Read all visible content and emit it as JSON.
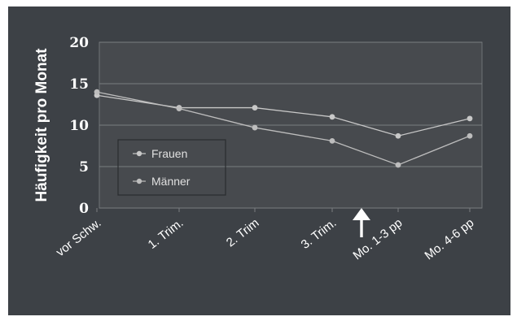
{
  "chart_data": {
    "type": "line",
    "title": "",
    "xlabel": "",
    "ylabel": "Häufigkeit pro Monat",
    "categories": [
      "vor Schw.",
      "1. Trim.",
      "2. Trim",
      "3. Trim.",
      "Mo. 1-3 pp",
      "Mo. 4-6 pp"
    ],
    "ylim": [
      0,
      20
    ],
    "yticks": [
      0,
      5,
      10,
      15,
      20
    ],
    "series": [
      {
        "name": "Frauen",
        "values": [
          13.6,
          12.1,
          12.1,
          11.0,
          8.7,
          10.8
        ],
        "color": "#c8c8c8"
      },
      {
        "name": "Männer",
        "values": [
          14.0,
          12.0,
          9.7,
          8.1,
          5.2,
          8.7
        ],
        "color": "#bdbdbd"
      }
    ],
    "grid": true,
    "legend_position": "lower-left",
    "annotation_arrow_category": "Mo. 1-3 pp"
  },
  "colors": {
    "background": "#3d4146",
    "plot_area": "#474a4e",
    "gridline": "#7a7d80",
    "text": "#ffffff"
  }
}
